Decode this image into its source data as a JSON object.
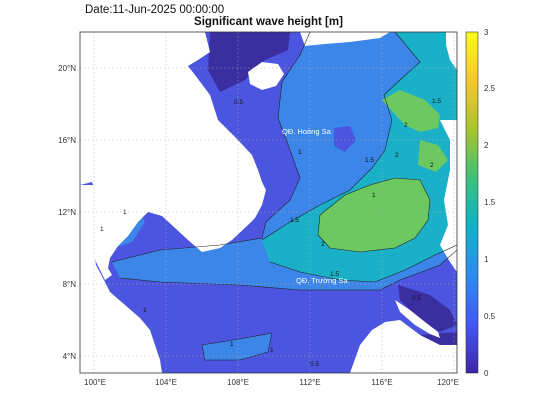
{
  "date_label": "Date:11-Jun-2025 00:00:00",
  "title": "Significant wave height [m]",
  "colors": {
    "land": "#ffffff",
    "sea_0": "#3a2ea0",
    "sea_05": "#4b55e0",
    "sea_1": "#3b86e8",
    "sea_15": "#1ab0c8",
    "sea_2": "#6cc860"
  },
  "map_labels": {
    "hoang_sa": "QĐ. Hoàng Sa",
    "truong_sa": "QĐ. Trường Sa"
  },
  "contour_labels": {
    "c05": "0.5",
    "c1": "1",
    "c15": "1.5",
    "c2": "2"
  },
  "lon_ticks": [
    "100°E",
    "104°E",
    "108°E",
    "112°E",
    "116°E",
    "120°E"
  ],
  "lat_ticks": [
    "20°N",
    "16°N",
    "12°N",
    "8°N",
    "4°N"
  ],
  "colorbar": {
    "ticks": [
      "3",
      "2.5",
      "2",
      "1.5",
      "1",
      "0.5",
      "0"
    ],
    "min": 0,
    "max": 3,
    "colormap": [
      "#3e26a8",
      "#4456f4",
      "#2d8cf0",
      "#0fb2c7",
      "#3bc17c",
      "#a6c42e",
      "#f8c82d",
      "#f9fb15"
    ]
  },
  "extent": {
    "lon": [
      99,
      120.5
    ],
    "lat": [
      3,
      22
    ]
  }
}
